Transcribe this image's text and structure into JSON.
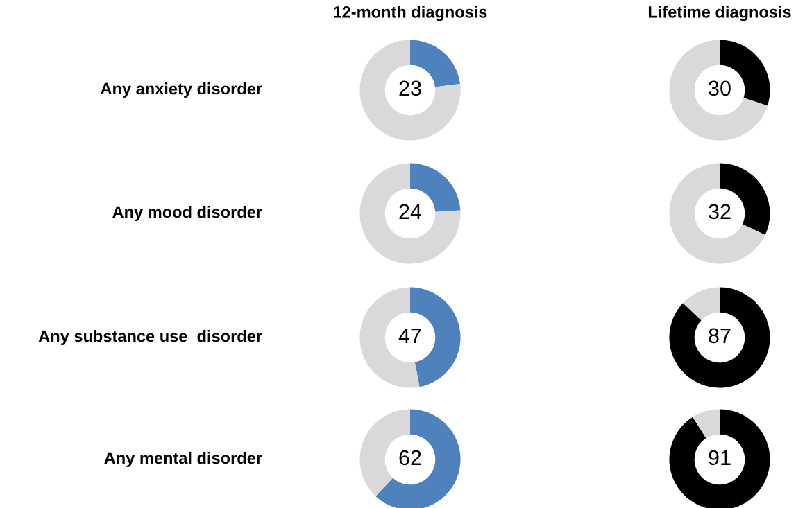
{
  "chart_data": [
    {
      "type": "donut",
      "title": "12-month diagnosis",
      "ylabel": "Any anxiety disorder",
      "categories": [
        null,
        null
      ],
      "values": [
        23,
        77
      ],
      "colors": [
        "#4f81bd",
        "#d9d9d9"
      ],
      "value_labels": [
        "23",
        null
      ]
    },
    {
      "type": "donut",
      "title": "Lifetime diagnosis",
      "categories": [
        null,
        null
      ],
      "values": [
        30,
        70
      ],
      "colors": [
        "#000000",
        "#d9d9d9"
      ],
      "value_labels": [
        "30",
        null
      ]
    },
    {
      "type": "donut",
      "ylabel": "Any mood disorder",
      "categories": [
        null,
        null
      ],
      "values": [
        24,
        76
      ],
      "colors": [
        "#4f81bd",
        "#d9d9d9"
      ],
      "value_labels": [
        "24",
        null
      ]
    },
    {
      "type": "donut",
      "categories": [
        null,
        null
      ],
      "values": [
        32,
        68
      ],
      "colors": [
        "#000000",
        "#d9d9d9"
      ],
      "value_labels": [
        "32",
        null
      ]
    },
    {
      "type": "donut",
      "ylabel": "Any substance use  disorder",
      "categories": [
        null,
        null
      ],
      "values": [
        47,
        53
      ],
      "colors": [
        "#4f81bd",
        "#d9d9d9"
      ],
      "value_labels": [
        "47",
        null
      ]
    },
    {
      "type": "donut",
      "categories": [
        null,
        null
      ],
      "values": [
        87,
        13
      ],
      "colors": [
        "#000000",
        "#d9d9d9"
      ],
      "value_labels": [
        "87",
        null
      ]
    },
    {
      "type": "donut",
      "ylabel": "Any mental disorder",
      "categories": [
        null,
        null
      ],
      "values": [
        62,
        38
      ],
      "colors": [
        "#4f81bd",
        "#d9d9d9"
      ],
      "value_labels": [
        "62",
        null
      ]
    },
    {
      "type": "donut",
      "categories": [
        null,
        null
      ],
      "values": [
        91,
        9
      ],
      "colors": [
        "#000000",
        "#d9d9d9"
      ],
      "value_labels": [
        "91",
        null
      ]
    }
  ]
}
